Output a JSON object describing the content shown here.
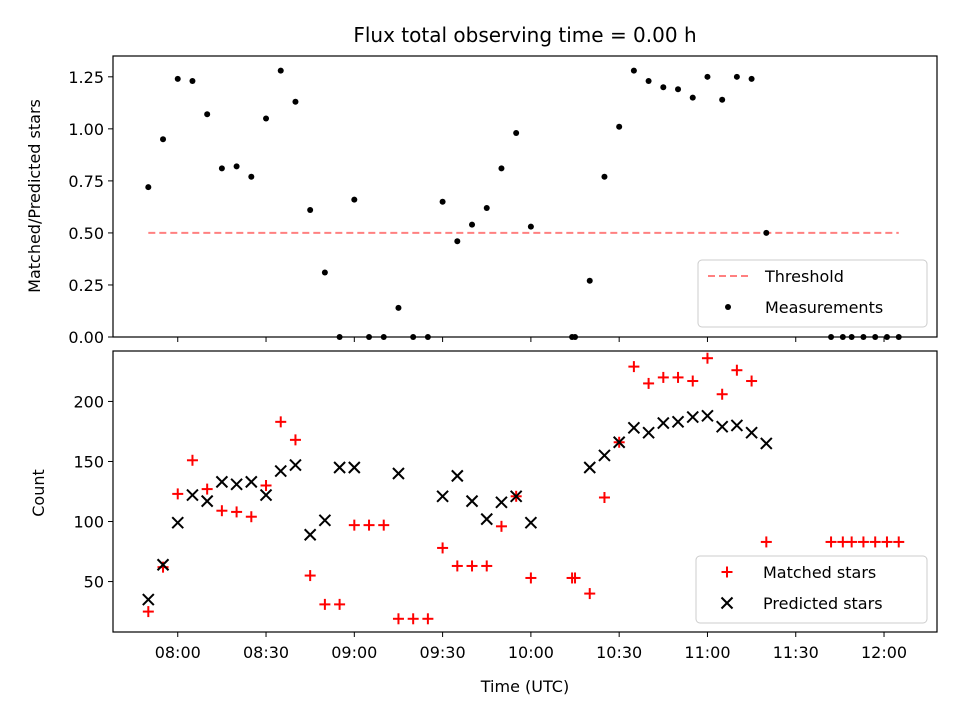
{
  "chart_data": [
    {
      "type": "scatter",
      "title": "Flux total observing time = 0.00 h",
      "xlabel": "",
      "ylabel": "Matched/Predicted stars",
      "ylim": [
        0,
        1.35
      ],
      "yticks": [
        "0.00",
        "0.25",
        "0.50",
        "0.75",
        "1.00",
        "1.25"
      ],
      "grid": false,
      "legend": "lower-right",
      "threshold": {
        "name": "Threshold",
        "value": 0.5,
        "x_start": "07:50",
        "x_end": "12:05",
        "color": "#ff8080"
      },
      "series": [
        {
          "name": "Measurements",
          "color": "#000000",
          "x": [
            "07:50",
            "07:55",
            "08:00",
            "08:05",
            "08:10",
            "08:15",
            "08:20",
            "08:25",
            "08:30",
            "08:35",
            "08:40",
            "08:45",
            "08:50",
            "08:55",
            "09:00",
            "09:05",
            "09:10",
            "09:15",
            "09:20",
            "09:25",
            "09:30",
            "09:35",
            "09:40",
            "09:45",
            "09:50",
            "09:55",
            "10:00",
            "10:14",
            "10:15",
            "10:20",
            "10:25",
            "10:30",
            "10:35",
            "10:40",
            "10:45",
            "10:50",
            "10:55",
            "11:00",
            "11:05",
            "11:10",
            "11:15",
            "11:20",
            "11:42",
            "11:46",
            "11:49",
            "11:53",
            "11:57",
            "12:01",
            "12:05"
          ],
          "y": [
            0.72,
            0.95,
            1.24,
            1.23,
            1.07,
            0.81,
            0.82,
            0.77,
            1.05,
            1.28,
            1.13,
            0.61,
            0.31,
            0.0,
            0.66,
            0.0,
            0.0,
            0.14,
            0.0,
            0.0,
            0.65,
            0.46,
            0.54,
            0.62,
            0.81,
            0.98,
            0.53,
            0.0,
            0.0,
            0.27,
            0.77,
            1.01,
            1.28,
            1.23,
            1.2,
            1.19,
            1.15,
            1.25,
            1.14,
            1.25,
            1.24,
            0.5,
            0.0,
            0.0,
            0.0,
            0.0,
            0.0,
            0.0,
            0.0
          ]
        }
      ]
    },
    {
      "type": "scatter",
      "title": "",
      "xlabel": "Time (UTC)",
      "ylabel": "Count",
      "ylim": [
        8,
        242
      ],
      "xlim": [
        "07:38",
        "12:18"
      ],
      "yticks": [
        "50",
        "100",
        "150",
        "200"
      ],
      "xticks": [
        "08:00",
        "08:30",
        "09:00",
        "09:30",
        "10:00",
        "10:30",
        "11:00",
        "11:30",
        "12:00"
      ],
      "grid": false,
      "legend": "lower-right",
      "series": [
        {
          "name": "Matched stars",
          "marker": "plus",
          "color": "#ff0000",
          "x": [
            "07:50",
            "07:55",
            "08:00",
            "08:05",
            "08:10",
            "08:15",
            "08:20",
            "08:25",
            "08:30",
            "08:35",
            "08:40",
            "08:45",
            "08:50",
            "08:55",
            "09:00",
            "09:05",
            "09:10",
            "09:15",
            "09:20",
            "09:25",
            "09:30",
            "09:35",
            "09:40",
            "09:45",
            "09:50",
            "09:55",
            "10:00",
            "10:14",
            "10:15",
            "10:20",
            "10:25",
            "10:30",
            "10:35",
            "10:40",
            "10:45",
            "10:50",
            "10:55",
            "11:00",
            "11:05",
            "11:10",
            "11:15",
            "11:20",
            "11:42",
            "11:46",
            "11:49",
            "11:53",
            "11:57",
            "12:01",
            "12:05"
          ],
          "y": [
            25,
            62,
            123,
            151,
            127,
            109,
            108,
            104,
            130,
            183,
            168,
            55,
            31,
            31,
            97,
            97,
            97,
            19,
            19,
            19,
            78,
            63,
            63,
            63,
            96,
            121,
            53,
            53,
            53,
            40,
            120,
            166,
            229,
            215,
            220,
            220,
            217,
            236,
            206,
            226,
            217,
            83,
            83,
            83,
            83,
            83,
            83,
            83,
            83
          ]
        },
        {
          "name": "Predicted stars",
          "marker": "x",
          "color": "#000000",
          "x": [
            "07:50",
            "07:55",
            "08:00",
            "08:05",
            "08:10",
            "08:15",
            "08:20",
            "08:25",
            "08:30",
            "08:35",
            "08:40",
            "08:45",
            "08:50",
            "08:55",
            "09:00",
            "09:15",
            "09:30",
            "09:35",
            "09:40",
            "09:45",
            "09:50",
            "09:55",
            "10:00",
            "10:20",
            "10:25",
            "10:30",
            "10:35",
            "10:40",
            "10:45",
            "10:50",
            "10:55",
            "11:00",
            "11:05",
            "11:10",
            "11:15",
            "11:20"
          ],
          "y": [
            35,
            64,
            99,
            122,
            117,
            133,
            131,
            133,
            122,
            142,
            147,
            89,
            101,
            145,
            145,
            140,
            121,
            138,
            117,
            102,
            116,
            121,
            99,
            145,
            155,
            166,
            178,
            174,
            182,
            183,
            187,
            188,
            179,
            180,
            174,
            165
          ]
        }
      ]
    }
  ]
}
